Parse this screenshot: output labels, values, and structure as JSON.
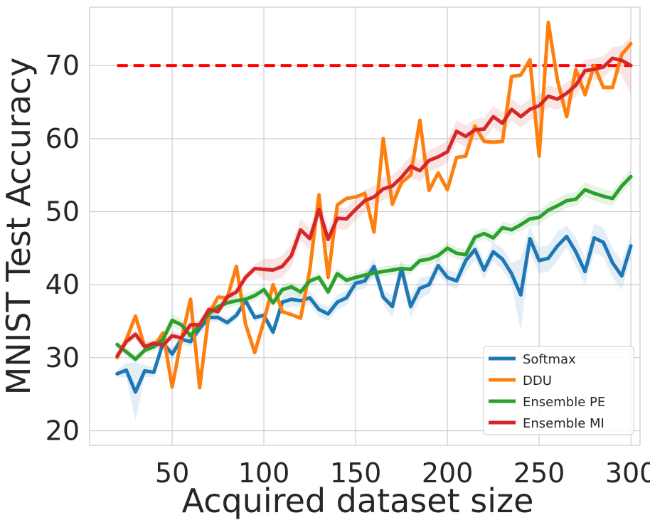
{
  "chart_data": {
    "type": "line",
    "xlabel": "Acquired dataset size",
    "ylabel": "MNIST Test Accuracy",
    "xlim": [
      5,
      305
    ],
    "ylim": [
      18,
      78
    ],
    "xticks": [
      50,
      100,
      150,
      200,
      250,
      300
    ],
    "yticks": [
      20,
      30,
      40,
      50,
      60,
      70
    ],
    "grid": true,
    "legend_position": "bottom-right",
    "x": [
      20,
      25,
      30,
      35,
      40,
      45,
      50,
      55,
      60,
      65,
      70,
      75,
      80,
      85,
      90,
      95,
      100,
      105,
      110,
      115,
      120,
      125,
      130,
      135,
      140,
      145,
      150,
      155,
      160,
      165,
      170,
      175,
      180,
      185,
      190,
      195,
      200,
      205,
      210,
      215,
      220,
      225,
      230,
      235,
      240,
      245,
      250,
      255,
      260,
      265,
      270,
      275,
      280,
      285,
      290,
      295,
      300
    ],
    "reference_line": {
      "y": 70,
      "x_start": 20,
      "x_end": 300,
      "color": "#ff0000",
      "style": "dashed"
    },
    "series": [
      {
        "name": "Softmax",
        "color": "#1f77b4",
        "band_half_width": [
          0.5,
          1,
          4,
          0.8,
          0.7,
          0.7,
          0.7,
          0.6,
          0.8,
          0.7,
          0.6,
          0.6,
          0.6,
          0.6,
          0.7,
          0.6,
          0.5,
          0.7,
          1,
          1,
          0.9,
          0.9,
          1,
          1,
          1,
          1,
          1,
          1,
          1.2,
          1,
          1.5,
          1.3,
          1.5,
          1.5,
          1.2,
          1.2,
          1,
          1.2,
          1.5,
          1.5,
          1.2,
          1.3,
          1.5,
          1.5,
          5,
          1.8,
          1.8,
          1.8,
          2,
          1.5,
          2,
          1.8,
          2,
          2,
          2,
          2,
          1.5
        ],
        "values": [
          27.8,
          28.3,
          25.3,
          28.2,
          28,
          32,
          30.5,
          32.5,
          32.2,
          34,
          35.5,
          35.5,
          34.8,
          35.8,
          37.8,
          35.5,
          35.8,
          33.5,
          37.6,
          38,
          37.8,
          38.2,
          36.6,
          36,
          37.6,
          38.2,
          40.2,
          40.5,
          42.5,
          38.3,
          37,
          42.2,
          37,
          39.5,
          40,
          42.6,
          41,
          40.5,
          43.3,
          44.8,
          42,
          44.5,
          43.5,
          41.5,
          38.6,
          46.3,
          43.3,
          43.6,
          45.3,
          46.6,
          44.5,
          41.8,
          46.4,
          45.8,
          43,
          41.2,
          45.3
        ]
      },
      {
        "name": "DDU",
        "color": "#ff7f0e",
        "values": [
          30,
          32.5,
          35.7,
          31.5,
          31.5,
          33.4,
          26,
          32.5,
          38,
          25.9,
          36,
          38.3,
          38.2,
          42.5,
          34.6,
          30.7,
          35,
          40,
          36.3,
          35.9,
          35.4,
          42,
          52.3,
          41,
          50.9,
          51.8,
          52,
          52.5,
          47.2,
          60,
          51,
          54,
          55,
          62.5,
          52.9,
          55.3,
          53,
          57.4,
          57.6,
          61.7,
          59.6,
          59.5,
          59.6,
          68.5,
          68.7,
          70.8,
          57.6,
          75.9,
          68,
          63,
          69.5,
          66,
          70,
          67,
          67,
          71.5,
          73
        ]
      },
      {
        "name": "Ensemble PE",
        "color": "#2ca02c",
        "band_half_width": [
          0.5,
          0.5,
          0.6,
          0.5,
          0.6,
          0.8,
          0.8,
          0.8,
          0.8,
          0.8,
          0.7,
          0.7,
          0.7,
          0.7,
          0.7,
          0.7,
          0.7,
          0.7,
          0.7,
          0.7,
          0.7,
          0.7,
          0.7,
          0.7,
          0.7,
          0.7,
          0.7,
          0.7,
          0.7,
          0.7,
          0.7,
          0.7,
          0.7,
          0.7,
          0.8,
          0.8,
          0.8,
          0.8,
          0.8,
          0.8,
          0.8,
          0.8,
          0.8,
          0.8,
          0.8,
          1,
          1,
          1,
          1,
          1,
          1,
          1,
          1,
          1,
          1,
          1,
          1
        ],
        "values": [
          31.8,
          30.8,
          29.8,
          31,
          31.5,
          32.5,
          35.1,
          34.5,
          33,
          34.5,
          36,
          37,
          37.5,
          37.8,
          38,
          38.5,
          39.3,
          37.5,
          39.3,
          39.7,
          39,
          40.5,
          41,
          39,
          41.5,
          40.6,
          41,
          41.3,
          41.6,
          41.8,
          42,
          42.2,
          42.1,
          43.3,
          43.5,
          44,
          45,
          44.3,
          44.1,
          46.5,
          47,
          46.4,
          47.8,
          47.5,
          48.2,
          49,
          49.2,
          50.2,
          50.8,
          51.5,
          51.7,
          53,
          52.5,
          52.1,
          51.8,
          53.5,
          54.8
        ]
      },
      {
        "name": "Ensemble MI",
        "color": "#d62728",
        "band_half_width": [
          0.5,
          0.6,
          0.6,
          0.6,
          0.6,
          0.6,
          0.6,
          0.6,
          0.6,
          0.6,
          0.6,
          0.6,
          0.6,
          0.6,
          0.6,
          0.6,
          1.5,
          1.5,
          1.5,
          1.5,
          1.5,
          1.5,
          1.5,
          1.5,
          1.5,
          1.5,
          1.5,
          1.5,
          1.5,
          1.5,
          1.5,
          1.5,
          1.5,
          1.5,
          1.5,
          1.5,
          1.5,
          1.5,
          1.5,
          1.5,
          1.5,
          1.5,
          1.5,
          1.5,
          1.5,
          1.5,
          1.5,
          1.5,
          1.5,
          1.5,
          1.5,
          1.5,
          1.5,
          1.5,
          1.5,
          2,
          4
        ],
        "values": [
          30.2,
          32.2,
          33.2,
          31.5,
          32,
          31.7,
          33,
          32.7,
          34.5,
          34.5,
          36.6,
          36.3,
          38.3,
          39,
          41,
          42.2,
          42.1,
          42,
          42.5,
          44,
          47.5,
          46.3,
          50.3,
          46.2,
          49.1,
          49,
          50.3,
          51.5,
          52,
          53.1,
          53.5,
          54.7,
          56.2,
          55.6,
          57,
          57.5,
          58.2,
          61,
          60.3,
          61.2,
          61.3,
          63,
          62.1,
          64,
          63,
          64,
          64.5,
          65.8,
          65.4,
          66.2,
          67.3,
          69.3,
          69.5,
          69.8,
          71,
          70.7,
          70
        ]
      }
    ]
  }
}
